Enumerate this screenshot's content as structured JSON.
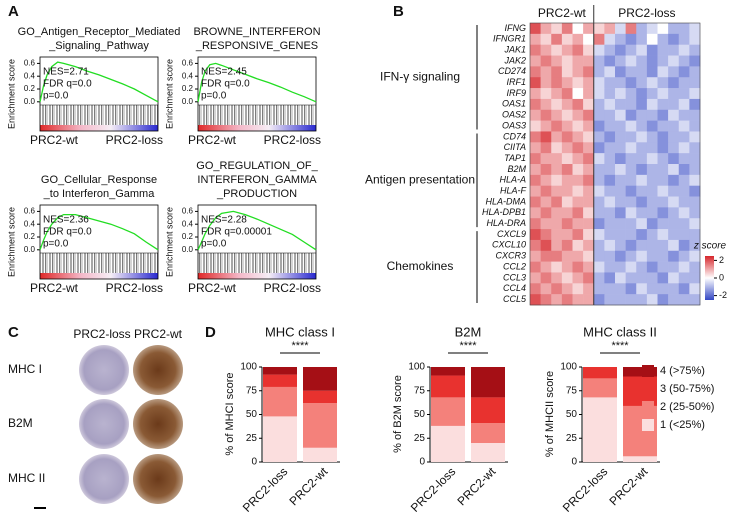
{
  "figure": {
    "panel_labels": [
      "A",
      "B",
      "C",
      "D"
    ]
  },
  "ihc": {
    "columns": [
      "PRC2-loss",
      "PRC2-wt"
    ],
    "rows": [
      "MHC I",
      "B2M",
      "MHC II"
    ]
  },
  "chart_data": [
    {
      "type": "line",
      "title_lines": [
        "GO_Antigen_Receptor_Mediated",
        "_Signaling_Pathway"
      ],
      "annotations": [
        "NES=2.71",
        "FDR q=0.0",
        "p=0.0"
      ],
      "y_label": "Enrichment score",
      "x_labels": [
        "PRC2-wt",
        "PRC2-loss"
      ],
      "x": [
        0,
        3,
        6,
        10,
        15,
        20,
        30,
        40,
        50,
        60,
        70,
        80,
        90,
        100
      ],
      "series": [
        {
          "color": "#22dd22",
          "values": [
            0,
            0.25,
            0.42,
            0.55,
            0.62,
            0.6,
            0.55,
            0.48,
            0.42,
            0.35,
            0.28,
            0.2,
            0.1,
            0
          ]
        }
      ],
      "xlim": [
        0,
        100
      ],
      "ylim": [
        -0.05,
        0.7
      ],
      "yticks": [
        {
          "value": 0,
          "label": "0.0"
        },
        {
          "value": 0.2,
          "label": "0.2"
        },
        {
          "value": 0.4,
          "label": "0.4"
        },
        {
          "value": 0.6,
          "label": "0.6"
        }
      ]
    },
    {
      "type": "line",
      "title_lines": [
        "BROWNE_INTERFERON",
        "_RESPONSIVE_GENES"
      ],
      "annotations": [
        "NES=2.45",
        "FDR q=0.0",
        "p=0.0"
      ],
      "y_label": "Enrichment score",
      "x_labels": [
        "PRC2-wt",
        "PRC2-loss"
      ],
      "x": [
        0,
        3,
        6,
        10,
        15,
        20,
        30,
        40,
        50,
        60,
        70,
        80,
        90,
        100
      ],
      "series": [
        {
          "color": "#22dd22",
          "values": [
            0,
            0.3,
            0.48,
            0.58,
            0.6,
            0.57,
            0.5,
            0.43,
            0.36,
            0.3,
            0.23,
            0.15,
            0.08,
            0
          ]
        }
      ],
      "xlim": [
        0,
        100
      ],
      "ylim": [
        -0.05,
        0.7
      ],
      "yticks": [
        {
          "value": 0,
          "label": "0.0"
        },
        {
          "value": 0.2,
          "label": "0.2"
        },
        {
          "value": 0.4,
          "label": "0.4"
        },
        {
          "value": 0.6,
          "label": "0.6"
        }
      ]
    },
    {
      "type": "line",
      "title_lines": [
        "GO_Cellular_Response",
        "_to Interferon_Gamma"
      ],
      "annotations": [
        "NES=2.36",
        "FDR q=0.0",
        "p=0.0"
      ],
      "y_label": "Enrichment score",
      "x_labels": [
        "PRC2-wt",
        "PRC2-loss"
      ],
      "x": [
        0,
        3,
        6,
        10,
        15,
        20,
        30,
        40,
        50,
        60,
        70,
        80,
        90,
        100
      ],
      "series": [
        {
          "color": "#22dd22",
          "values": [
            0,
            0.15,
            0.28,
            0.4,
            0.5,
            0.55,
            0.55,
            0.5,
            0.45,
            0.4,
            0.33,
            0.25,
            0.12,
            0
          ]
        }
      ],
      "xlim": [
        0,
        100
      ],
      "ylim": [
        -0.05,
        0.7
      ],
      "yticks": [
        {
          "value": 0,
          "label": "0.0"
        },
        {
          "value": 0.2,
          "label": "0.2"
        },
        {
          "value": 0.4,
          "label": "0.4"
        },
        {
          "value": 0.6,
          "label": "0.6"
        }
      ]
    },
    {
      "type": "line",
      "title_lines": [
        "GO_REGULATION_OF_",
        "INTERFERON_GAMMA",
        "_PRODUCTION"
      ],
      "annotations": [
        "NES=2.28",
        "FDR q=0.00001",
        "p=0.0"
      ],
      "y_label": "Enrichment score",
      "x_labels": [
        "PRC2-wt",
        "PRC2-loss"
      ],
      "x": [
        0,
        3,
        6,
        10,
        15,
        20,
        30,
        40,
        50,
        60,
        70,
        80,
        90,
        100
      ],
      "series": [
        {
          "color": "#22dd22",
          "values": [
            0,
            0.12,
            0.25,
            0.38,
            0.5,
            0.57,
            0.6,
            0.55,
            0.48,
            0.4,
            0.32,
            0.24,
            0.12,
            0
          ]
        }
      ],
      "xlim": [
        0,
        100
      ],
      "ylim": [
        -0.05,
        0.7
      ],
      "yticks": [
        {
          "value": 0,
          "label": "0.0"
        },
        {
          "value": 0.2,
          "label": "0.2"
        },
        {
          "value": 0.4,
          "label": "0.4"
        },
        {
          "value": 0.6,
          "label": "0.6"
        }
      ]
    },
    {
      "type": "heatmap",
      "row_groups": [
        {
          "label": "IFN-γ signaling",
          "genes": [
            "IFNG",
            "IFNGR1",
            "JAK1",
            "JAK2",
            "CD274",
            "IRF1",
            "IRF9",
            "OAS1",
            "OAS2",
            "OAS3"
          ]
        },
        {
          "label": "Antigen presentation",
          "genes": [
            "CD74",
            "CIITA",
            "TAP1",
            "B2M",
            "HLA-A",
            "HLA-F",
            "HLA-DMA",
            "HLA-DPB1",
            "HLA-DRA"
          ]
        },
        {
          "label": "Chemokines",
          "genes": [
            "CXCL9",
            "CXCL10",
            "CXCR3",
            "CCL2",
            "CCL3",
            "CCL4",
            "CCL5"
          ]
        }
      ],
      "series": [
        {
          "name": "PRC2-wt",
          "values": [
            [
              2,
              1,
              0.5,
              1.5,
              0,
              1
            ],
            [
              1,
              0.5,
              1.5,
              0.5,
              1,
              0
            ],
            [
              1.5,
              1,
              0.5,
              1,
              1.5,
              0.5
            ],
            [
              1,
              1.5,
              1,
              0.5,
              1,
              1
            ],
            [
              1.5,
              1,
              1.5,
              0.5,
              1,
              1.5
            ],
            [
              2,
              1,
              1.5,
              1,
              0.5,
              1
            ],
            [
              1,
              0.5,
              1,
              1.5,
              0,
              1
            ],
            [
              1.5,
              1,
              0.5,
              1,
              1.5,
              0.5
            ],
            [
              1,
              1.5,
              1,
              0.5,
              1,
              1.5
            ],
            [
              0.5,
              1,
              1.5,
              1,
              0.5,
              1
            ],
            [
              1.5,
              2,
              1,
              1.5,
              1,
              0.5
            ],
            [
              1,
              1.5,
              0.5,
              1,
              1.5,
              1
            ],
            [
              1.5,
              1,
              1,
              0.5,
              1,
              1.5
            ],
            [
              1,
              1.5,
              1,
              1.5,
              0.5,
              1
            ],
            [
              1.5,
              1,
              0.5,
              1,
              1,
              1.5
            ],
            [
              1,
              1.5,
              1,
              1,
              0.5,
              1
            ],
            [
              1.5,
              1,
              1.5,
              0.5,
              1,
              1
            ],
            [
              1,
              1.5,
              1,
              1,
              1.5,
              0.5
            ],
            [
              1.5,
              1,
              1,
              1.5,
              1,
              1
            ],
            [
              2,
              1.5,
              1,
              1,
              1.5,
              0.5
            ],
            [
              1.5,
              2,
              1,
              1.5,
              0.5,
              1
            ],
            [
              1,
              1.5,
              1.5,
              1,
              1,
              0.5
            ],
            [
              1.5,
              1,
              0.5,
              1,
              1.5,
              1
            ],
            [
              1,
              1.5,
              1,
              0.5,
              1,
              1.5
            ],
            [
              1.5,
              1,
              1.5,
              1,
              0.5,
              1
            ],
            [
              2,
              1.5,
              1,
              1.5,
              1,
              1
            ]
          ]
        },
        {
          "name": "PRC2-loss",
          "values": [
            [
              0.5,
              1,
              -0.5,
              1.5,
              -1,
              -0.5,
              0,
              -1,
              -1,
              -0.5
            ],
            [
              1.5,
              -0.5,
              -1,
              -1.5,
              -1,
              0,
              -1,
              -1.5,
              -1,
              -0.5
            ],
            [
              -0.5,
              -1,
              -1.5,
              -1,
              -0.5,
              -1.5,
              -1,
              -1,
              -0.5,
              -1
            ],
            [
              -1,
              -1.5,
              -1,
              -0.5,
              -1,
              -1.5,
              -1,
              -0.5,
              -1,
              -1.5
            ],
            [
              -1,
              -0.5,
              -1.5,
              -1,
              -1,
              -1.5,
              -0.5,
              -1,
              -1.5,
              -1
            ],
            [
              -0.5,
              -1,
              -1,
              -1.5,
              -1,
              -0.5,
              -1,
              -1.5,
              -1,
              -1
            ],
            [
              -0.5,
              -1,
              -0.5,
              -1,
              -1.5,
              -1,
              -0.5,
              -1,
              -1,
              -0.5
            ],
            [
              -1,
              -0.5,
              -1,
              -1,
              -1.5,
              -0.5,
              -1,
              -1,
              -0.5,
              -1.5
            ],
            [
              -1,
              -1,
              -0.5,
              -1.5,
              -1,
              -1,
              -1.5,
              -0.5,
              -1,
              -1
            ],
            [
              -1.5,
              -1,
              -1,
              -0.5,
              -1,
              -1.5,
              -1,
              -1,
              -0.5,
              -1
            ],
            [
              -1,
              -1.5,
              -1,
              -1,
              -0.5,
              -1,
              -1.5,
              -1,
              -1,
              -0.5
            ],
            [
              -1.5,
              -1,
              -1,
              -0.5,
              -1,
              -1,
              -1.5,
              -1,
              -0.5,
              -1
            ],
            [
              -0.5,
              -1,
              -1.5,
              -1,
              -1,
              -0.5,
              -1,
              -1.5,
              -1,
              -1
            ],
            [
              -1,
              -1,
              -0.5,
              -1,
              -1.5,
              -1,
              -1,
              -0.5,
              -1.5,
              -1
            ],
            [
              -1,
              -1.5,
              -1,
              -1,
              -0.5,
              -1,
              -1,
              -1.5,
              -1,
              -0.5
            ],
            [
              -0.5,
              -1,
              -1,
              -1.5,
              -1,
              -1,
              -0.5,
              -1,
              -1,
              -1.5
            ],
            [
              -1,
              -0.5,
              -1,
              -1,
              -1.5,
              -1,
              -1,
              -0.5,
              -1,
              -1
            ],
            [
              -1,
              -1,
              -1.5,
              -0.5,
              -1,
              -1,
              -1.5,
              -1,
              -0.5,
              -1
            ],
            [
              -1.5,
              -1,
              -1,
              -1,
              -0.5,
              -1.5,
              -1,
              -1,
              -1,
              -0.5
            ],
            [
              -0.5,
              -1,
              -1,
              -1,
              -1.5,
              -1,
              -0.5,
              -1,
              -1,
              -1
            ],
            [
              -1,
              -0.5,
              -1,
              -1.5,
              -1,
              -1,
              -1,
              -0.5,
              -1.5,
              -1
            ],
            [
              -1,
              -1,
              -1.5,
              -1,
              -0.5,
              -1,
              -1,
              -1.5,
              -1,
              -0.5
            ],
            [
              -0.5,
              -1,
              -1,
              -0.5,
              -1,
              -1.5,
              -1,
              -1,
              -0.5,
              -1
            ],
            [
              -1,
              -1.5,
              -0.5,
              -1,
              -1,
              -1,
              -1.5,
              -0.5,
              -1,
              -1
            ],
            [
              -1,
              -1,
              -1,
              -1.5,
              -0.5,
              -1,
              -1,
              -1,
              -1.5,
              -0.5
            ],
            [
              -1.5,
              -1,
              -1,
              -1,
              -1,
              -0.5,
              -1.5,
              -1,
              -1,
              -1
            ]
          ]
        }
      ],
      "colorbar_title": "z score",
      "zlim": [
        -2.5,
        2.5
      ],
      "zticks": [
        2,
        0,
        -2
      ],
      "colormap": [
        "#3347c4",
        "#ffffff",
        "#d6262b"
      ]
    },
    {
      "type": "stacked-bar",
      "series": [
        {
          "name": "4 (>75%)",
          "color": "#a50f15"
        },
        {
          "name": "3 (50-75%)",
          "color": "#e8322f"
        },
        {
          "name": "2 (25-50%)",
          "color": "#f4817b"
        },
        {
          "name": "1 (<25%)",
          "color": "#fbdede"
        }
      ],
      "ylim": [
        0,
        100
      ],
      "yticks": [
        0,
        25,
        50,
        75,
        100
      ],
      "subplots": [
        {
          "title": "MHC class I",
          "y_label": "% of MHCI score",
          "categories": [
            "PRC2-loss",
            "PRC2-wt"
          ],
          "significance": "****",
          "values": [
            [
              8,
              25
            ],
            [
              13,
              13
            ],
            [
              31,
              47
            ],
            [
              48,
              15
            ]
          ]
        },
        {
          "title": "B2M",
          "y_label": "% of B2M score",
          "categories": [
            "PRC2-loss",
            "PRC2-wt"
          ],
          "significance": "****",
          "values": [
            [
              9,
              32
            ],
            [
              23,
              27
            ],
            [
              30,
              21
            ],
            [
              38,
              20
            ]
          ]
        },
        {
          "title": "MHC class II",
          "y_label": "% of MHCII score",
          "categories": [
            "PRC2-loss",
            "PRC2-wt"
          ],
          "significance": "****",
          "values": [
            [
              0,
              10
            ],
            [
              12,
              31
            ],
            [
              20,
              53
            ],
            [
              68,
              6
            ]
          ]
        }
      ]
    }
  ]
}
